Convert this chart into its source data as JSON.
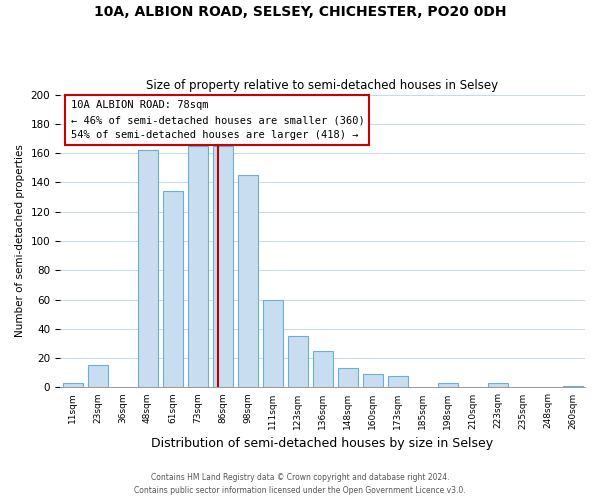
{
  "title": "10A, ALBION ROAD, SELSEY, CHICHESTER, PO20 0DH",
  "subtitle": "Size of property relative to semi-detached houses in Selsey",
  "xlabel": "Distribution of semi-detached houses by size in Selsey",
  "ylabel": "Number of semi-detached properties",
  "bar_color": "#c8ddf0",
  "bar_edge_color": "#6baed6",
  "background_color": "#ffffff",
  "grid_color": "#c8d8e8",
  "bin_labels": [
    "11sqm",
    "23sqm",
    "36sqm",
    "48sqm",
    "61sqm",
    "73sqm",
    "86sqm",
    "98sqm",
    "111sqm",
    "123sqm",
    "136sqm",
    "148sqm",
    "160sqm",
    "173sqm",
    "185sqm",
    "198sqm",
    "210sqm",
    "223sqm",
    "235sqm",
    "248sqm",
    "260sqm"
  ],
  "bar_heights": [
    3,
    15,
    0,
    162,
    134,
    165,
    165,
    145,
    60,
    35,
    25,
    13,
    9,
    8,
    0,
    3,
    0,
    3,
    0,
    0,
    1
  ],
  "n_bins": 21,
  "property_bin": 6,
  "vline_color": "#bb0000",
  "annotation_title": "10A ALBION ROAD: 78sqm",
  "annotation_line1": "← 46% of semi-detached houses are smaller (360)",
  "annotation_line2": "54% of semi-detached houses are larger (418) →",
  "annotation_box_color": "#ffffff",
  "annotation_box_edge_color": "#cc0000",
  "ylim": [
    0,
    200
  ],
  "yticks": [
    0,
    20,
    40,
    60,
    80,
    100,
    120,
    140,
    160,
    180,
    200
  ],
  "footer1": "Contains HM Land Registry data © Crown copyright and database right 2024.",
  "footer2": "Contains public sector information licensed under the Open Government Licence v3.0."
}
